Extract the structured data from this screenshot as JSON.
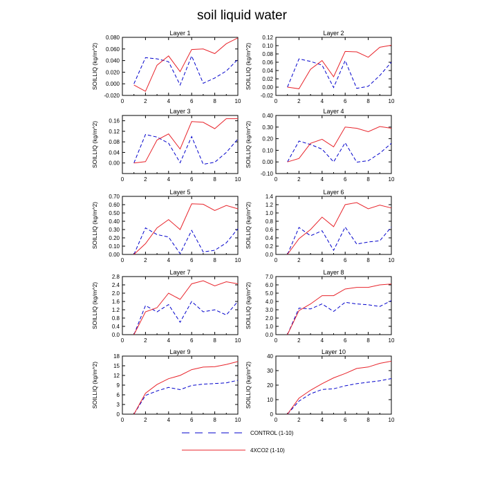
{
  "title": "soil liquid water",
  "colors": {
    "control": "#0000cc",
    "xco2": "#e8232a",
    "axis": "#000000"
  },
  "legend": {
    "control_label": "CONTROL (1-10)",
    "xco2_label": "4XCO2 (1-10)"
  },
  "chart_data": [
    {
      "type": "line",
      "title": "Layer 1",
      "ylabel": "SOILLIQ  (kg/m^2)",
      "xlabel": "",
      "x": [
        1,
        2,
        3,
        4,
        5,
        6,
        7,
        8,
        9,
        10
      ],
      "xlim": [
        0,
        10
      ],
      "xticks": [
        0,
        2,
        4,
        6,
        8,
        10
      ],
      "xtick_labels": [
        "0",
        "2",
        "4",
        "6",
        "8",
        "10"
      ],
      "ylim": [
        -0.02,
        0.08
      ],
      "yticks": [
        -0.02,
        0,
        0.02,
        0.04,
        0.06,
        0.08
      ],
      "ytick_labels": [
        "-0.020",
        "0.000",
        "0.020",
        "0.040",
        "0.060",
        "0.080"
      ],
      "series": [
        {
          "name": "CONTROL (1-10)",
          "style": "dashed",
          "values": [
            0.0,
            0.045,
            0.043,
            0.038,
            -0.002,
            0.048,
            0.001,
            0.01,
            0.022,
            0.042
          ]
        },
        {
          "name": "4XCO2 (1-10)",
          "style": "solid",
          "values": [
            -0.002,
            -0.013,
            0.032,
            0.048,
            0.021,
            0.059,
            0.06,
            0.052,
            0.069,
            0.079
          ]
        }
      ]
    },
    {
      "type": "line",
      "title": "Layer 2",
      "ylabel": "SOILLIQ  (kg/m^2)",
      "xlabel": "",
      "x": [
        1,
        2,
        3,
        4,
        5,
        6,
        7,
        8,
        9,
        10
      ],
      "xlim": [
        0,
        10
      ],
      "xticks": [
        0,
        2,
        4,
        6,
        8,
        10
      ],
      "xtick_labels": [
        "0",
        "2",
        "4",
        "6",
        "8",
        "10"
      ],
      "ylim": [
        -0.02,
        0.12
      ],
      "yticks": [
        -0.02,
        0,
        0.02,
        0.04,
        0.06,
        0.08,
        0.1,
        0.12
      ],
      "ytick_labels": [
        "-0.02",
        "0.00",
        "0.02",
        "0.04",
        "0.06",
        "0.08",
        "0.10",
        "0.12"
      ],
      "series": [
        {
          "name": "CONTROL (1-10)",
          "style": "dashed",
          "values": [
            0.0,
            0.068,
            0.062,
            0.053,
            -0.001,
            0.064,
            -0.003,
            0.002,
            0.028,
            0.06
          ]
        },
        {
          "name": "4XCO2 (1-10)",
          "style": "solid",
          "values": [
            0.0,
            -0.004,
            0.043,
            0.064,
            0.025,
            0.086,
            0.085,
            0.072,
            0.096,
            0.101
          ]
        }
      ]
    },
    {
      "type": "line",
      "title": "Layer 3",
      "ylabel": "SOILLIQ  (kg/m^2)",
      "xlabel": "",
      "x": [
        1,
        2,
        3,
        4,
        5,
        6,
        7,
        8,
        9,
        10
      ],
      "xlim": [
        0,
        10
      ],
      "xticks": [
        0,
        2,
        4,
        6,
        8,
        10
      ],
      "xtick_labels": [
        "0",
        "2",
        "4",
        "6",
        "8",
        "10"
      ],
      "ylim": [
        -0.04,
        0.18
      ],
      "yticks": [
        0,
        0.04,
        0.08,
        0.12,
        0.16
      ],
      "ytick_labels": [
        "0.00",
        "0.04",
        "0.08",
        "0.12",
        "0.16"
      ],
      "series": [
        {
          "name": "CONTROL (1-10)",
          "style": "dashed",
          "values": [
            0.0,
            0.108,
            0.098,
            0.075,
            0.001,
            0.1,
            -0.005,
            0.003,
            0.04,
            0.091
          ]
        },
        {
          "name": "4XCO2 (1-10)",
          "style": "solid",
          "values": [
            0.0,
            0.005,
            0.087,
            0.11,
            0.053,
            0.157,
            0.154,
            0.13,
            0.168,
            0.168
          ]
        }
      ]
    },
    {
      "type": "line",
      "title": "Layer 4",
      "ylabel": "SOILLIQ  (kg/m^2)",
      "xlabel": "",
      "x": [
        1,
        2,
        3,
        4,
        5,
        6,
        7,
        8,
        9,
        10
      ],
      "xlim": [
        0,
        10
      ],
      "xticks": [
        0,
        2,
        4,
        6,
        8,
        10
      ],
      "xtick_labels": [
        "0",
        "2",
        "4",
        "6",
        "8",
        "10"
      ],
      "ylim": [
        -0.1,
        0.4
      ],
      "yticks": [
        -0.1,
        0,
        0.1,
        0.2,
        0.3,
        0.4
      ],
      "ytick_labels": [
        "-0.10",
        "0.00",
        "0.10",
        "0.20",
        "0.30",
        "0.40"
      ],
      "series": [
        {
          "name": "CONTROL (1-10)",
          "style": "dashed",
          "values": [
            0.0,
            0.18,
            0.15,
            0.11,
            0.0,
            0.165,
            -0.002,
            0.01,
            0.075,
            0.16
          ]
        },
        {
          "name": "4XCO2 (1-10)",
          "style": "solid",
          "values": [
            0.0,
            0.03,
            0.16,
            0.195,
            0.13,
            0.3,
            0.29,
            0.26,
            0.305,
            0.29
          ]
        }
      ]
    },
    {
      "type": "line",
      "title": "Layer 5",
      "ylabel": "SOILLIQ  (kg/m^2)",
      "xlabel": "",
      "x": [
        1,
        2,
        3,
        4,
        5,
        6,
        7,
        8,
        9,
        10
      ],
      "xlim": [
        0,
        10
      ],
      "xticks": [
        0,
        2,
        4,
        6,
        8,
        10
      ],
      "xtick_labels": [
        "0",
        "2",
        "4",
        "6",
        "8",
        "10"
      ],
      "ylim": [
        0,
        0.7
      ],
      "yticks": [
        0,
        0.1,
        0.2,
        0.3,
        0.4,
        0.5,
        0.6,
        0.7
      ],
      "ytick_labels": [
        "0.00",
        "0.10",
        "0.20",
        "0.30",
        "0.40",
        "0.50",
        "0.60",
        "0.70"
      ],
      "series": [
        {
          "name": "CONTROL (1-10)",
          "style": "dashed",
          "values": [
            0.0,
            0.32,
            0.24,
            0.21,
            0.01,
            0.29,
            0.03,
            0.05,
            0.14,
            0.31
          ]
        },
        {
          "name": "4XCO2 (1-10)",
          "style": "solid",
          "values": [
            0.0,
            0.13,
            0.32,
            0.42,
            0.3,
            0.61,
            0.605,
            0.53,
            0.59,
            0.55
          ]
        }
      ]
    },
    {
      "type": "line",
      "title": "Layer 6",
      "ylabel": "SOILLIQ  (kg/m^2)",
      "xlabel": "",
      "x": [
        1,
        2,
        3,
        4,
        5,
        6,
        7,
        8,
        9,
        10
      ],
      "xlim": [
        0,
        10
      ],
      "xticks": [
        0,
        2,
        4,
        6,
        8,
        10
      ],
      "xtick_labels": [
        "0",
        "2",
        "4",
        "6",
        "8",
        "10"
      ],
      "ylim": [
        0,
        1.4
      ],
      "yticks": [
        0,
        0.2,
        0.4,
        0.6,
        0.8,
        1.0,
        1.2,
        1.4
      ],
      "ytick_labels": [
        "0.0",
        "0.2",
        "0.4",
        "0.6",
        "0.8",
        "1.0",
        "1.2",
        "1.4"
      ],
      "series": [
        {
          "name": "CONTROL (1-10)",
          "style": "dashed",
          "values": [
            0.0,
            0.65,
            0.45,
            0.57,
            0.1,
            0.66,
            0.25,
            0.3,
            0.33,
            0.66
          ]
        },
        {
          "name": "4XCO2 (1-10)",
          "style": "solid",
          "values": [
            0.0,
            0.38,
            0.6,
            0.9,
            0.67,
            1.2,
            1.25,
            1.1,
            1.19,
            1.12
          ]
        }
      ]
    },
    {
      "type": "line",
      "title": "Layer 7",
      "ylabel": "SOILLIQ  (kg/m^2)",
      "xlabel": "",
      "x": [
        1,
        2,
        3,
        4,
        5,
        6,
        7,
        8,
        9,
        10
      ],
      "xlim": [
        0,
        10
      ],
      "xticks": [
        0,
        2,
        4,
        6,
        8,
        10
      ],
      "xtick_labels": [
        "0",
        "2",
        "4",
        "6",
        "8",
        "10"
      ],
      "ylim": [
        0,
        2.8
      ],
      "yticks": [
        0,
        0.4,
        0.8,
        1.2,
        1.6,
        2.0,
        2.4,
        2.8
      ],
      "ytick_labels": [
        "0.0",
        "0.4",
        "0.8",
        "1.2",
        "1.6",
        "2.0",
        "2.4",
        "2.8"
      ],
      "series": [
        {
          "name": "CONTROL (1-10)",
          "style": "dashed",
          "values": [
            0.0,
            1.4,
            1.1,
            1.45,
            0.6,
            1.6,
            1.1,
            1.2,
            0.95,
            1.6
          ]
        },
        {
          "name": "4XCO2 (1-10)",
          "style": "solid",
          "values": [
            0.0,
            1.1,
            1.3,
            2.0,
            1.7,
            2.45,
            2.6,
            2.35,
            2.55,
            2.45
          ]
        }
      ]
    },
    {
      "type": "line",
      "title": "Layer 8",
      "ylabel": "SOILLIQ  (kg/m^2)",
      "xlabel": "",
      "x": [
        1,
        2,
        3,
        4,
        5,
        6,
        7,
        8,
        9,
        10
      ],
      "xlim": [
        0,
        10
      ],
      "xticks": [
        0,
        2,
        4,
        6,
        8,
        10
      ],
      "xtick_labels": [
        "0",
        "2",
        "4",
        "6",
        "8",
        "10"
      ],
      "ylim": [
        0,
        7
      ],
      "yticks": [
        0,
        1,
        2,
        3,
        4,
        5,
        6,
        7
      ],
      "ytick_labels": [
        "0.0",
        "1.0",
        "2.0",
        "3.0",
        "4.0",
        "5.0",
        "6.0",
        "7.0"
      ],
      "series": [
        {
          "name": "CONTROL (1-10)",
          "style": "dashed",
          "values": [
            0.0,
            3.2,
            3.1,
            3.7,
            2.8,
            3.9,
            3.7,
            3.6,
            3.4,
            4.1
          ]
        },
        {
          "name": "4XCO2 (1-10)",
          "style": "solid",
          "values": [
            0.0,
            2.9,
            3.7,
            4.7,
            4.7,
            5.5,
            5.7,
            5.7,
            6.0,
            6.1
          ]
        }
      ]
    },
    {
      "type": "line",
      "title": "Layer 9",
      "ylabel": "SOILLIQ  (kg/m^2)",
      "xlabel": "",
      "x": [
        1,
        2,
        3,
        4,
        5,
        6,
        7,
        8,
        9,
        10
      ],
      "xlim": [
        0,
        10
      ],
      "xticks": [
        0,
        2,
        4,
        6,
        8,
        10
      ],
      "xtick_labels": [
        "0",
        "2",
        "4",
        "6",
        "8",
        "10"
      ],
      "ylim": [
        0,
        18
      ],
      "yticks": [
        0,
        3,
        6,
        9,
        12,
        15,
        18
      ],
      "ytick_labels": [
        "0",
        "3",
        "6",
        "9",
        "12",
        "15",
        "18"
      ],
      "series": [
        {
          "name": "CONTROL (1-10)",
          "style": "dashed",
          "values": [
            0.0,
            5.8,
            7.2,
            8.3,
            7.6,
            8.9,
            9.3,
            9.5,
            9.7,
            10.5
          ]
        },
        {
          "name": "4XCO2 (1-10)",
          "style": "solid",
          "values": [
            0.0,
            6.5,
            9.2,
            11.0,
            12.0,
            13.8,
            14.6,
            14.7,
            15.4,
            16.3
          ]
        }
      ]
    },
    {
      "type": "line",
      "title": "Layer 10",
      "ylabel": "SOILLIQ  (kg/m^2)",
      "xlabel": "",
      "x": [
        1,
        2,
        3,
        4,
        5,
        6,
        7,
        8,
        9,
        10
      ],
      "xlim": [
        0,
        10
      ],
      "xticks": [
        0,
        2,
        4,
        6,
        8,
        10
      ],
      "xtick_labels": [
        "0",
        "2",
        "4",
        "6",
        "8",
        "10"
      ],
      "ylim": [
        0,
        40
      ],
      "yticks": [
        0,
        10,
        20,
        30,
        40
      ],
      "ytick_labels": [
        "0",
        "10",
        "20",
        "30",
        "40"
      ],
      "series": [
        {
          "name": "CONTROL (1-10)",
          "style": "dashed",
          "values": [
            0.0,
            9.0,
            14.0,
            17.0,
            17.5,
            19.5,
            21.0,
            22.0,
            23.0,
            24.5
          ]
        },
        {
          "name": "4XCO2 (1-10)",
          "style": "solid",
          "values": [
            0.0,
            11.0,
            16.5,
            21.0,
            25.0,
            28.0,
            31.5,
            32.5,
            35.0,
            36.5
          ]
        }
      ]
    }
  ]
}
